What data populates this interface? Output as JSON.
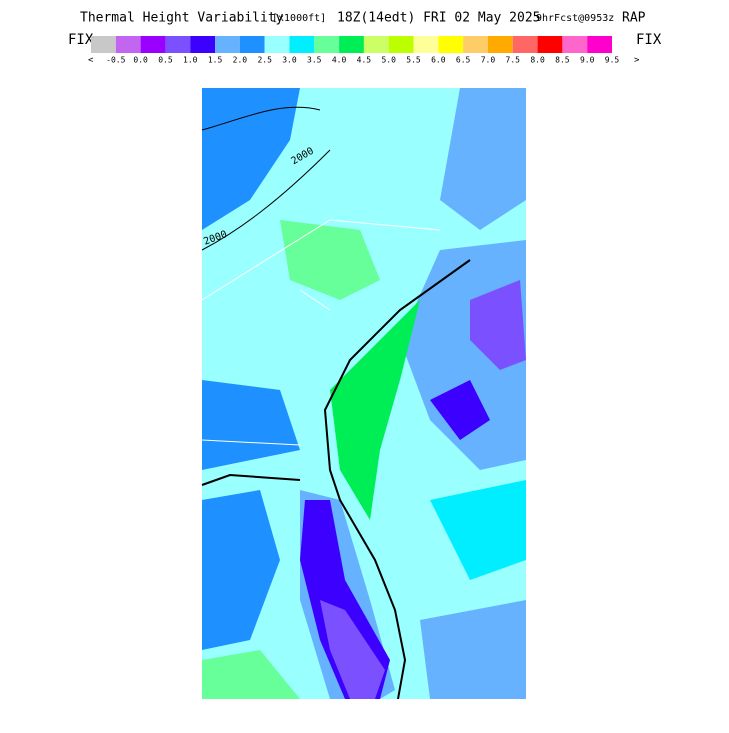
{
  "header": {
    "title": "Thermal Height Variability",
    "units": "[x1000ft]",
    "valid": "18Z(14edt) FRI 02 May 2025",
    "forecast": "9hrFcst@0953z",
    "model": "RAP"
  },
  "legend": {
    "left_button": "FIX",
    "right_button": "FIX",
    "left_arrow": "<",
    "right_arrow": ">",
    "colors": [
      "#c8c8c8",
      "#c266f2",
      "#9a00ff",
      "#7b50ff",
      "#3c00ff",
      "#66b2ff",
      "#1e90ff",
      "#99ffff",
      "#00eeff",
      "#66ff99",
      "#00ee55",
      "#ccff66",
      "#bbff00",
      "#ffff99",
      "#ffff00",
      "#ffcc66",
      "#ffaa00",
      "#ff6666",
      "#ff0000",
      "#ff66cc",
      "#ff00cc"
    ],
    "labels": [
      "-0.5",
      "0.0",
      "0.5",
      "1.0",
      "1.5",
      "2.0",
      "2.5",
      "3.0",
      "3.5",
      "4.0",
      "4.5",
      "5.0",
      "5.5",
      "6.0",
      "6.5",
      "7.0",
      "7.5",
      "8.0",
      "8.5",
      "9.0",
      "9.5"
    ]
  },
  "map": {
    "contour_labels": [
      "2000",
      "2000"
    ]
  }
}
